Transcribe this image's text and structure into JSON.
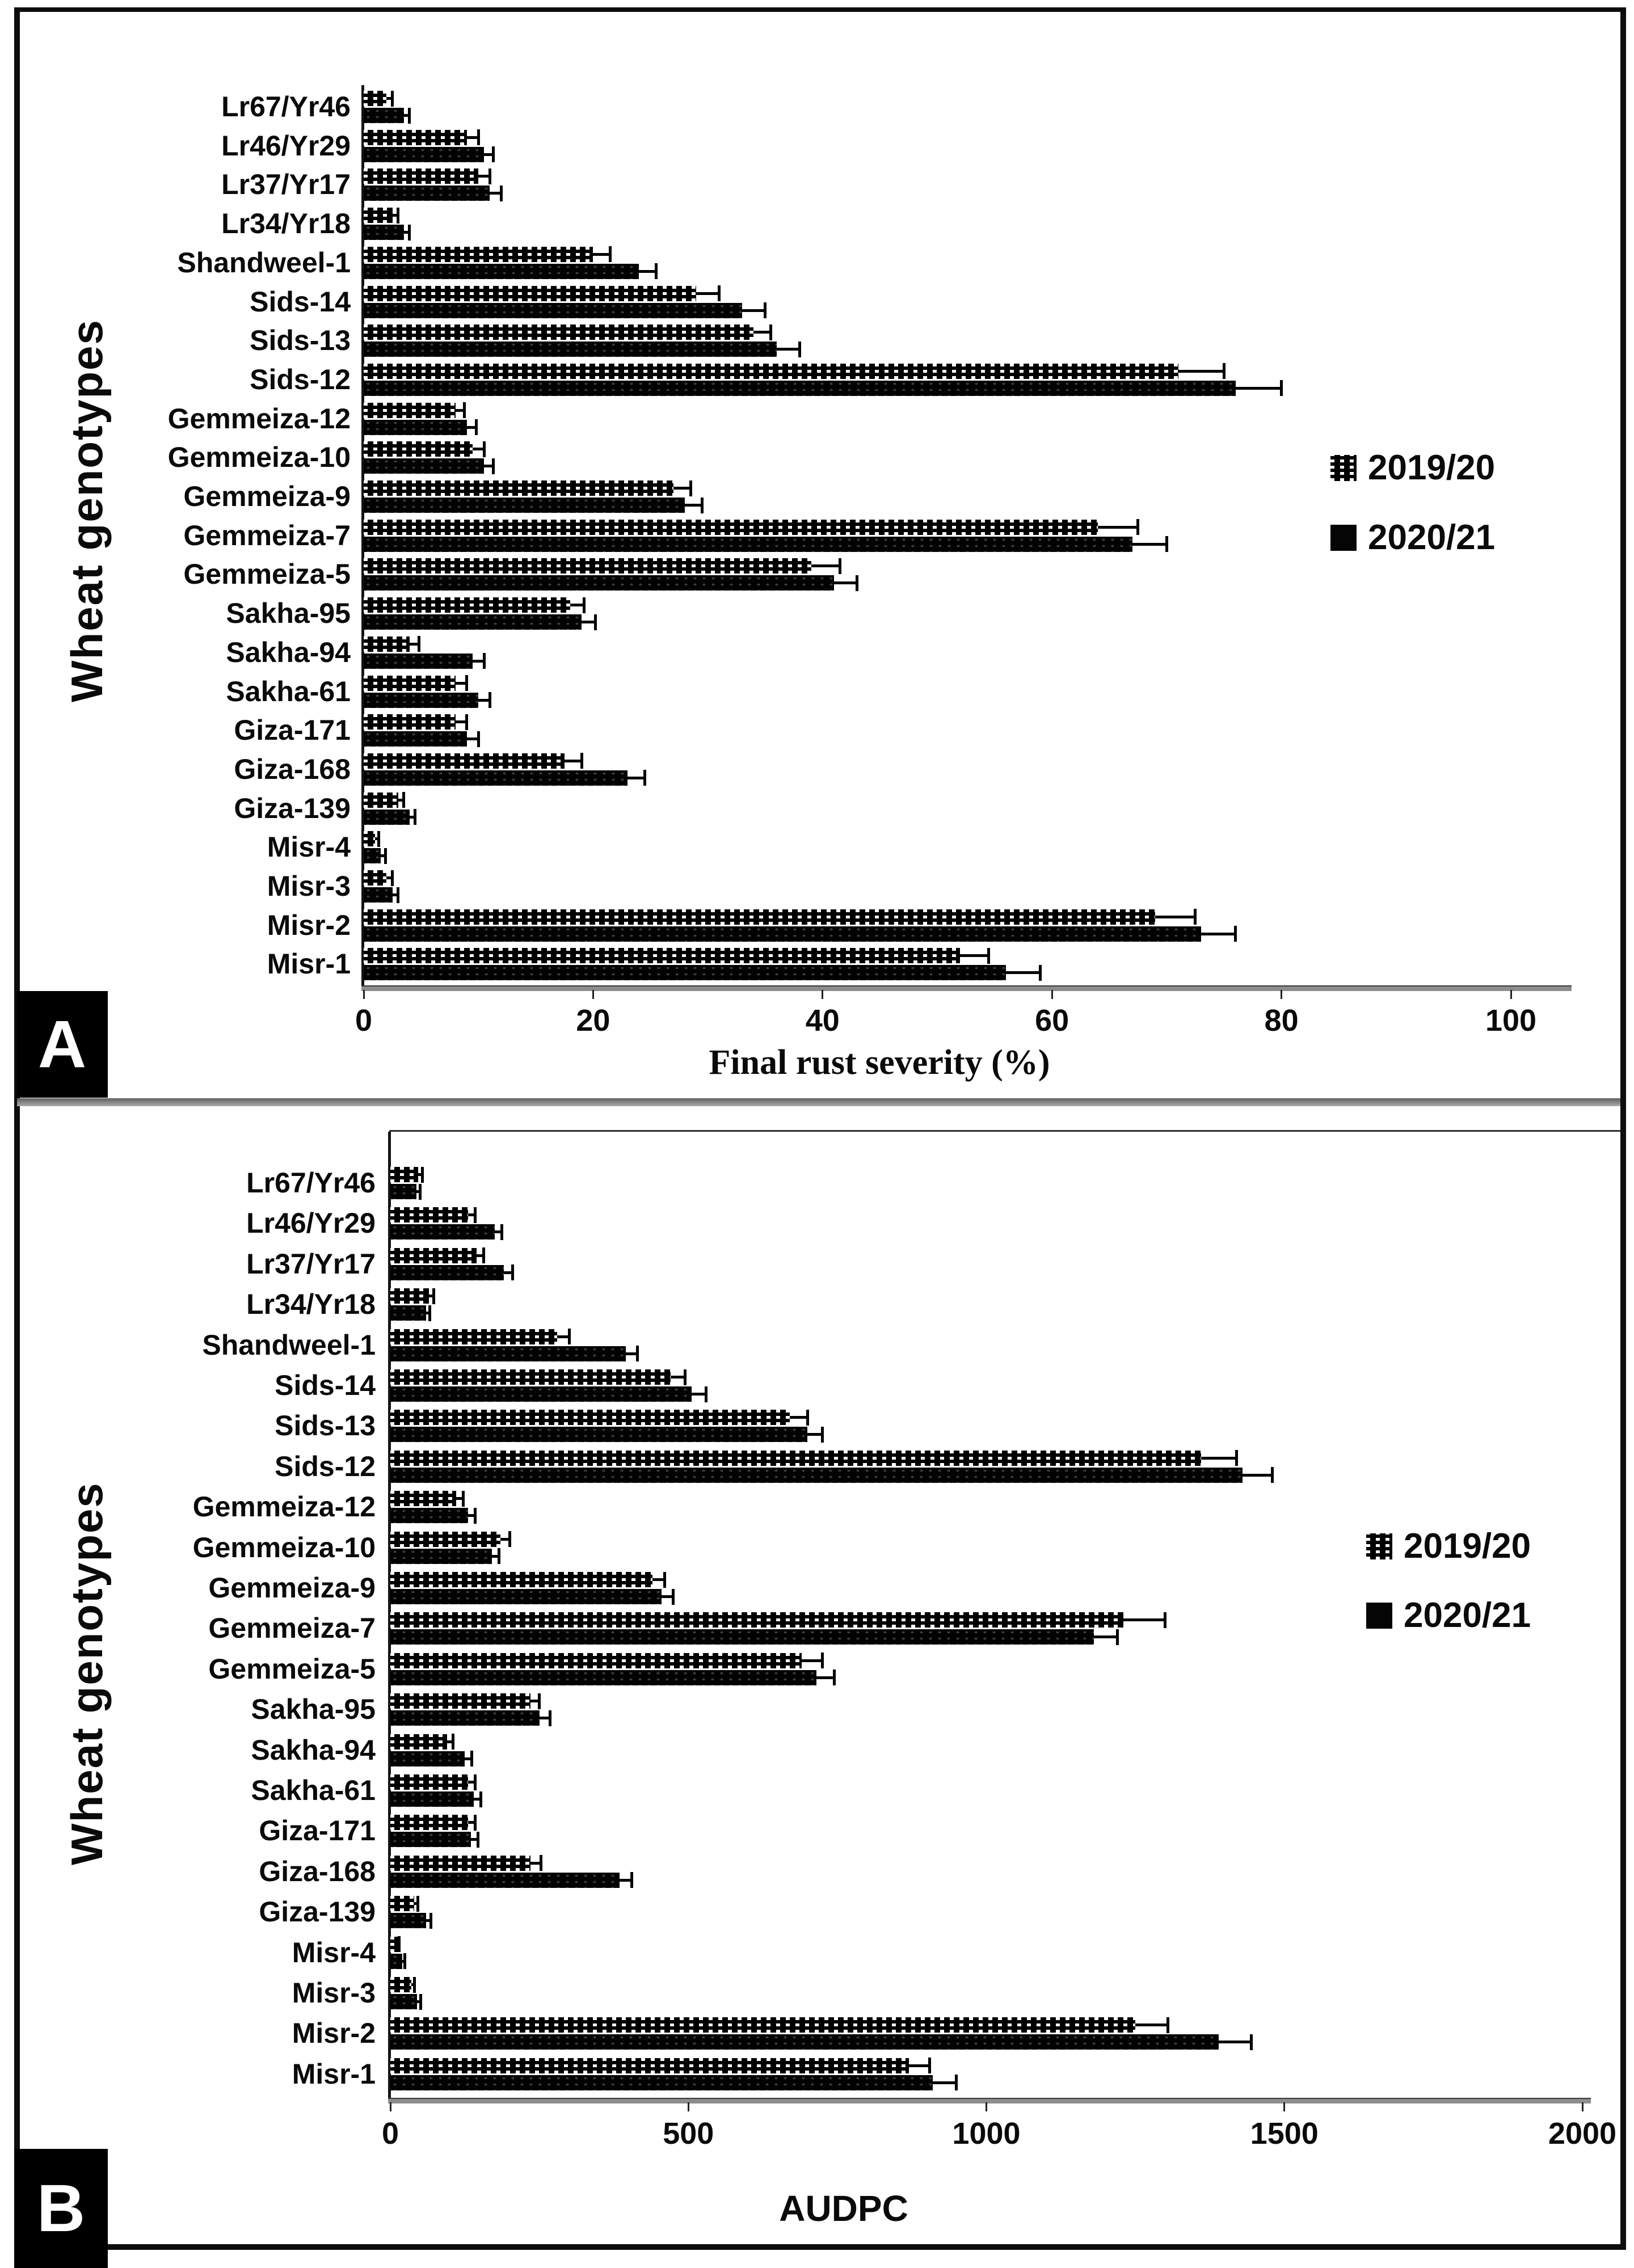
{
  "figure": {
    "panel_a_label": "A",
    "panel_b_label": "B",
    "background_color": "#ffffff",
    "border_color": "#0d0d0d",
    "series1_color": "#000000",
    "series1_pattern": "black-with-white-dot-weave",
    "series2_color": "#020202",
    "series2_pattern": "solid-black-faint-dots"
  },
  "chart_data": [
    {
      "type": "bar",
      "orientation": "horizontal",
      "panel": "A",
      "xlabel": "Final rust severity (%)",
      "ylabel": "Wheat genotypes",
      "xlim": [
        0,
        100
      ],
      "xticks": [
        0,
        20,
        40,
        60,
        80,
        100
      ],
      "grid": false,
      "legend_position": "right-middle",
      "error_bars": true,
      "categories": [
        "Lr67/Yr46",
        "Lr46/Yr29",
        "Lr37/Yr17",
        "Lr34/Yr18",
        "Shandweel-1",
        "Sids-14",
        "Sids-13",
        "Sids-12",
        "Gemmeiza-12",
        "Gemmeiza-10",
        "Gemmeiza-9",
        "Gemmeiza-7",
        "Gemmeiza-5",
        "Sakha-95",
        "Sakha-94",
        "Sakha-61",
        "Giza-171",
        "Giza-168",
        "Giza-139",
        "Misr-4",
        "Misr-3",
        "Misr-2",
        "Misr-1"
      ],
      "series": [
        {
          "name": "2019/20",
          "values": [
            2,
            9,
            10,
            2.5,
            20,
            29,
            34,
            71,
            8,
            9.5,
            27,
            64,
            39,
            18,
            4,
            8,
            8,
            17.5,
            3,
            1,
            2,
            69,
            52
          ],
          "errors": [
            0.5,
            1,
            1,
            0.5,
            1.5,
            2,
            1.5,
            4,
            0.8,
            1,
            1.5,
            3.5,
            2.5,
            1.2,
            0.8,
            1,
            1,
            1.5,
            0.5,
            0.3,
            0.5,
            3.5,
            2.5
          ]
        },
        {
          "name": "2020/21",
          "values": [
            3.5,
            10.5,
            11,
            3.5,
            24,
            33,
            36,
            76,
            9,
            10.5,
            28,
            67,
            41,
            19,
            9.5,
            10,
            9,
            23,
            4,
            1.5,
            2.5,
            73,
            56
          ],
          "errors": [
            0.5,
            0.8,
            1,
            0.5,
            1.5,
            2,
            2,
            4,
            0.8,
            0.8,
            1.5,
            3,
            2,
            1.2,
            1,
            1,
            1,
            1.5,
            0.5,
            0.4,
            0.5,
            3,
            3
          ]
        }
      ]
    },
    {
      "type": "bar",
      "orientation": "horizontal",
      "panel": "B",
      "xlabel": "AUDPC",
      "ylabel": "Wheat genotypes",
      "xlim": [
        0,
        2000
      ],
      "xticks": [
        0,
        500,
        1000,
        1500,
        2000
      ],
      "grid": false,
      "legend_position": "right-middle",
      "error_bars": true,
      "categories": [
        "Lr67/Yr46",
        "Lr46/Yr29",
        "Lr37/Yr17",
        "Lr34/Yr18",
        "Shandweel-1",
        "Sids-14",
        "Sids-13",
        "Sids-12",
        "Gemmeiza-12",
        "Gemmeiza-10",
        "Gemmeiza-9",
        "Gemmeiza-7",
        "Gemmeiza-5",
        "Sakha-95",
        "Sakha-94",
        "Sakha-61",
        "Giza-171",
        "Giza-168",
        "Giza-139",
        "Misr-4",
        "Misr-3",
        "Misr-2",
        "Misr-1"
      ],
      "series": [
        {
          "name": "2019/20",
          "values": [
            47,
            130,
            145,
            65,
            280,
            470,
            670,
            1360,
            110,
            185,
            440,
            1230,
            690,
            235,
            95,
            130,
            130,
            235,
            40,
            12,
            35,
            1250,
            870
          ],
          "errors": [
            7,
            12,
            12,
            8,
            20,
            25,
            30,
            60,
            12,
            15,
            20,
            70,
            35,
            15,
            10,
            12,
            12,
            18,
            6,
            3,
            5,
            55,
            35
          ]
        },
        {
          "name": "2020/21",
          "values": [
            44,
            175,
            190,
            60,
            395,
            505,
            700,
            1430,
            130,
            170,
            455,
            1180,
            715,
            250,
            125,
            140,
            135,
            385,
            60,
            20,
            45,
            1390,
            910
          ],
          "errors": [
            6,
            12,
            15,
            6,
            20,
            25,
            25,
            50,
            12,
            12,
            20,
            40,
            30,
            18,
            12,
            12,
            12,
            20,
            8,
            4,
            6,
            55,
            40
          ]
        }
      ]
    }
  ]
}
